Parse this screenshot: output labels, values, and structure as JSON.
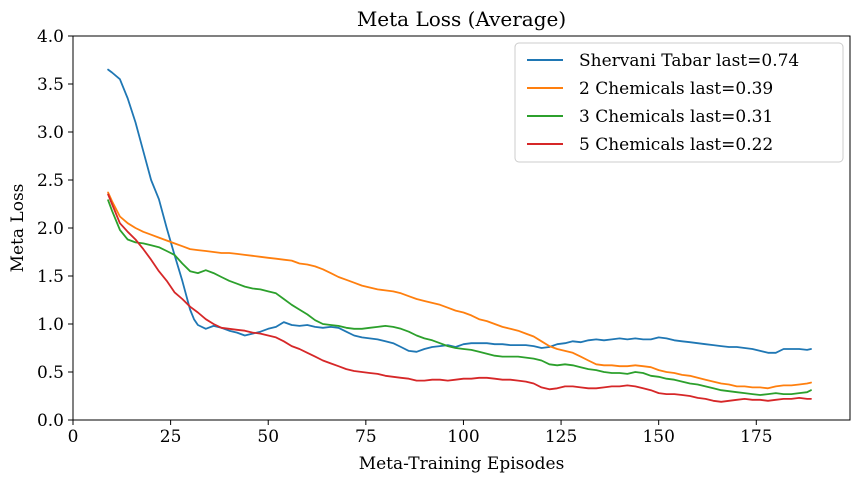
{
  "chart_data": {
    "type": "line",
    "title": "Meta Loss (Average)",
    "xlabel": "Meta-Training Episodes",
    "ylabel": "Meta Loss",
    "xlim": [
      0,
      199
    ],
    "ylim": [
      0,
      4
    ],
    "xticks": [
      0,
      25,
      50,
      75,
      100,
      125,
      150,
      175
    ],
    "yticks": [
      0.0,
      0.5,
      1.0,
      1.5,
      2.0,
      2.5,
      3.0,
      3.5,
      4.0
    ],
    "xtick_labels": [
      "0",
      "25",
      "50",
      "75",
      "100",
      "125",
      "150",
      "175"
    ],
    "ytick_labels": [
      "0.0",
      "0.5",
      "1.0",
      "1.5",
      "2.0",
      "2.5",
      "3.0",
      "3.5",
      "4.0"
    ],
    "grid": false,
    "legend_position": "top-right",
    "series": [
      {
        "name": "Shervani Tabar last=0.74",
        "color": "#1f77b4",
        "x": [
          9,
          10,
          12,
          14,
          16,
          18,
          20,
          22,
          24,
          26,
          28,
          30,
          31,
          32,
          34,
          36,
          38,
          40,
          42,
          44,
          46,
          48,
          50,
          52,
          54,
          56,
          58,
          60,
          62,
          64,
          66,
          68,
          70,
          72,
          74,
          76,
          78,
          80,
          82,
          84,
          86,
          88,
          90,
          92,
          94,
          96,
          98,
          100,
          102,
          104,
          106,
          108,
          110,
          112,
          114,
          116,
          118,
          120,
          122,
          124,
          126,
          128,
          130,
          132,
          134,
          136,
          138,
          140,
          142,
          144,
          146,
          148,
          150,
          152,
          154,
          156,
          158,
          160,
          162,
          164,
          166,
          168,
          170,
          172,
          174,
          176,
          178,
          180,
          182,
          184,
          186,
          188,
          189
        ],
        "y": [
          3.65,
          3.62,
          3.55,
          3.35,
          3.1,
          2.8,
          2.5,
          2.3,
          2.0,
          1.72,
          1.45,
          1.15,
          1.05,
          0.99,
          0.95,
          0.98,
          0.96,
          0.93,
          0.91,
          0.88,
          0.9,
          0.92,
          0.95,
          0.97,
          1.02,
          0.99,
          0.98,
          0.99,
          0.97,
          0.96,
          0.97,
          0.96,
          0.92,
          0.88,
          0.86,
          0.85,
          0.84,
          0.82,
          0.8,
          0.76,
          0.72,
          0.71,
          0.74,
          0.76,
          0.77,
          0.78,
          0.76,
          0.79,
          0.8,
          0.8,
          0.8,
          0.79,
          0.79,
          0.78,
          0.78,
          0.78,
          0.77,
          0.75,
          0.76,
          0.79,
          0.8,
          0.82,
          0.81,
          0.83,
          0.84,
          0.83,
          0.84,
          0.85,
          0.84,
          0.85,
          0.84,
          0.84,
          0.86,
          0.85,
          0.83,
          0.82,
          0.81,
          0.8,
          0.79,
          0.78,
          0.77,
          0.76,
          0.76,
          0.75,
          0.74,
          0.72,
          0.7,
          0.7,
          0.74,
          0.74,
          0.74,
          0.73,
          0.74
        ]
      },
      {
        "name": "2 Chemicals last=0.39",
        "color": "#ff7f0e",
        "x": [
          9,
          10,
          12,
          14,
          16,
          18,
          20,
          22,
          24,
          26,
          28,
          30,
          32,
          34,
          36,
          38,
          40,
          42,
          44,
          46,
          48,
          50,
          52,
          54,
          56,
          58,
          60,
          62,
          64,
          66,
          68,
          70,
          72,
          74,
          76,
          78,
          80,
          82,
          84,
          86,
          88,
          90,
          92,
          94,
          96,
          98,
          100,
          102,
          104,
          106,
          108,
          110,
          112,
          114,
          116,
          118,
          120,
          122,
          124,
          126,
          128,
          130,
          132,
          134,
          136,
          138,
          140,
          142,
          144,
          146,
          148,
          150,
          152,
          154,
          156,
          158,
          160,
          162,
          164,
          166,
          168,
          170,
          172,
          174,
          176,
          178,
          180,
          182,
          184,
          186,
          188,
          189
        ],
        "y": [
          2.37,
          2.28,
          2.12,
          2.05,
          2.0,
          1.96,
          1.93,
          1.9,
          1.87,
          1.84,
          1.81,
          1.78,
          1.77,
          1.76,
          1.75,
          1.74,
          1.74,
          1.73,
          1.72,
          1.71,
          1.7,
          1.69,
          1.68,
          1.67,
          1.66,
          1.63,
          1.62,
          1.6,
          1.57,
          1.53,
          1.49,
          1.46,
          1.43,
          1.4,
          1.38,
          1.36,
          1.35,
          1.34,
          1.32,
          1.29,
          1.26,
          1.24,
          1.22,
          1.2,
          1.17,
          1.14,
          1.12,
          1.09,
          1.05,
          1.03,
          1.0,
          0.97,
          0.95,
          0.93,
          0.9,
          0.87,
          0.82,
          0.77,
          0.74,
          0.72,
          0.7,
          0.66,
          0.62,
          0.58,
          0.57,
          0.57,
          0.56,
          0.56,
          0.57,
          0.56,
          0.55,
          0.52,
          0.5,
          0.49,
          0.47,
          0.46,
          0.44,
          0.42,
          0.4,
          0.38,
          0.37,
          0.35,
          0.35,
          0.34,
          0.34,
          0.33,
          0.35,
          0.36,
          0.36,
          0.37,
          0.38,
          0.39
        ]
      },
      {
        "name": "3 Chemicals last=0.31",
        "color": "#2ca02c",
        "x": [
          9,
          10,
          12,
          14,
          16,
          18,
          20,
          22,
          24,
          26,
          28,
          30,
          32,
          34,
          36,
          38,
          40,
          42,
          44,
          46,
          48,
          50,
          52,
          54,
          56,
          58,
          60,
          62,
          64,
          66,
          68,
          70,
          72,
          74,
          76,
          78,
          80,
          82,
          84,
          86,
          88,
          90,
          92,
          94,
          96,
          98,
          100,
          102,
          104,
          106,
          108,
          110,
          112,
          114,
          116,
          118,
          120,
          122,
          124,
          126,
          128,
          130,
          132,
          134,
          136,
          138,
          140,
          142,
          144,
          146,
          148,
          150,
          152,
          154,
          156,
          158,
          160,
          162,
          164,
          166,
          168,
          170,
          172,
          174,
          176,
          178,
          180,
          182,
          184,
          186,
          188,
          189
        ],
        "y": [
          2.29,
          2.18,
          1.98,
          1.88,
          1.85,
          1.84,
          1.82,
          1.8,
          1.76,
          1.72,
          1.63,
          1.55,
          1.53,
          1.56,
          1.53,
          1.49,
          1.45,
          1.42,
          1.39,
          1.37,
          1.36,
          1.34,
          1.32,
          1.26,
          1.2,
          1.15,
          1.1,
          1.04,
          1.0,
          0.99,
          0.98,
          0.96,
          0.95,
          0.95,
          0.96,
          0.97,
          0.98,
          0.97,
          0.95,
          0.92,
          0.88,
          0.85,
          0.83,
          0.8,
          0.77,
          0.75,
          0.74,
          0.73,
          0.71,
          0.69,
          0.67,
          0.66,
          0.66,
          0.66,
          0.65,
          0.64,
          0.62,
          0.58,
          0.57,
          0.58,
          0.57,
          0.55,
          0.53,
          0.52,
          0.5,
          0.49,
          0.49,
          0.48,
          0.5,
          0.49,
          0.46,
          0.45,
          0.43,
          0.42,
          0.4,
          0.38,
          0.37,
          0.35,
          0.33,
          0.31,
          0.3,
          0.29,
          0.28,
          0.27,
          0.26,
          0.27,
          0.28,
          0.27,
          0.27,
          0.28,
          0.29,
          0.31
        ]
      },
      {
        "name": "5 Chemicals last=0.22",
        "color": "#d62728",
        "x": [
          9,
          10,
          12,
          14,
          16,
          18,
          20,
          22,
          24,
          26,
          28,
          30,
          32,
          34,
          36,
          38,
          40,
          42,
          44,
          46,
          48,
          50,
          52,
          54,
          56,
          58,
          60,
          62,
          64,
          66,
          68,
          70,
          72,
          74,
          76,
          78,
          80,
          82,
          84,
          86,
          88,
          90,
          92,
          94,
          96,
          98,
          100,
          102,
          104,
          106,
          108,
          110,
          112,
          114,
          116,
          118,
          120,
          122,
          124,
          126,
          128,
          130,
          132,
          134,
          136,
          138,
          140,
          142,
          144,
          146,
          148,
          150,
          152,
          154,
          156,
          158,
          160,
          162,
          164,
          166,
          168,
          170,
          172,
          174,
          176,
          178,
          180,
          182,
          184,
          186,
          188,
          189
        ],
        "y": [
          2.35,
          2.25,
          2.05,
          1.96,
          1.88,
          1.78,
          1.67,
          1.55,
          1.45,
          1.33,
          1.26,
          1.18,
          1.12,
          1.05,
          1.0,
          0.96,
          0.95,
          0.94,
          0.93,
          0.91,
          0.9,
          0.88,
          0.86,
          0.82,
          0.77,
          0.74,
          0.7,
          0.66,
          0.62,
          0.59,
          0.56,
          0.53,
          0.51,
          0.5,
          0.49,
          0.48,
          0.46,
          0.45,
          0.44,
          0.43,
          0.41,
          0.41,
          0.42,
          0.42,
          0.41,
          0.42,
          0.43,
          0.43,
          0.44,
          0.44,
          0.43,
          0.42,
          0.42,
          0.41,
          0.4,
          0.38,
          0.34,
          0.32,
          0.33,
          0.35,
          0.35,
          0.34,
          0.33,
          0.33,
          0.34,
          0.35,
          0.35,
          0.36,
          0.35,
          0.33,
          0.31,
          0.28,
          0.27,
          0.27,
          0.26,
          0.25,
          0.23,
          0.22,
          0.2,
          0.19,
          0.2,
          0.21,
          0.22,
          0.21,
          0.21,
          0.2,
          0.21,
          0.22,
          0.22,
          0.23,
          0.22,
          0.22
        ]
      }
    ]
  }
}
